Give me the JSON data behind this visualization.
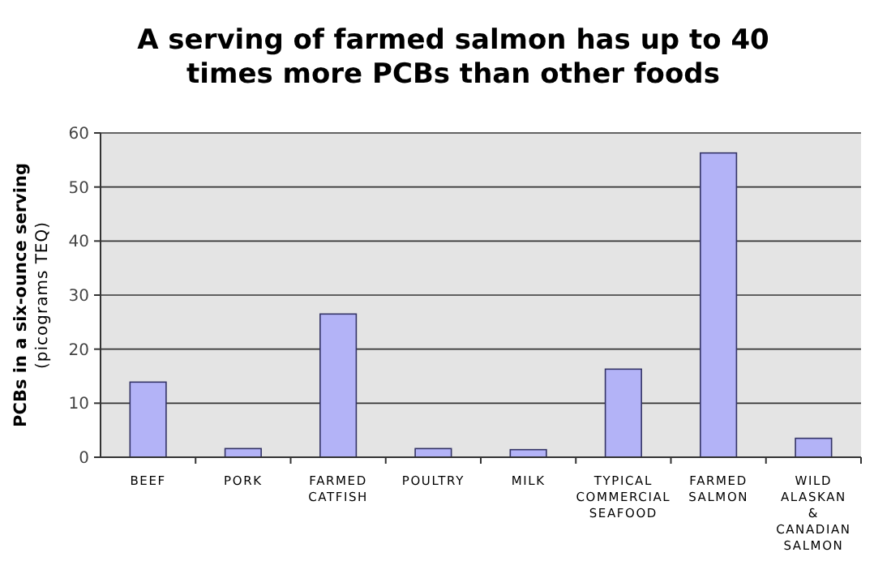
{
  "chart_data": {
    "type": "bar",
    "title": "A serving of farmed salmon has up to 40 times more PCBs than other foods",
    "ylabel": "PCBs in a six-ounce serving",
    "annotations": [
      "(picograms TEQ)"
    ],
    "categories": [
      "BEEF",
      "PORK",
      "FARMED CATFISH",
      "POULTRY",
      "MILK",
      "TYPICAL COMMERCIAL SEAFOOD",
      "FARMED SALMON",
      "WILD ALASKAN & CANADIAN SALMON"
    ],
    "values": [
      13.9,
      1.6,
      26.5,
      1.6,
      1.4,
      16.3,
      56.3,
      3.5
    ],
    "color": "#b3b3f7",
    "ylim": [
      0,
      60
    ],
    "yticks": [
      0,
      10,
      20,
      30,
      40,
      50,
      60
    ],
    "grid": "y"
  }
}
